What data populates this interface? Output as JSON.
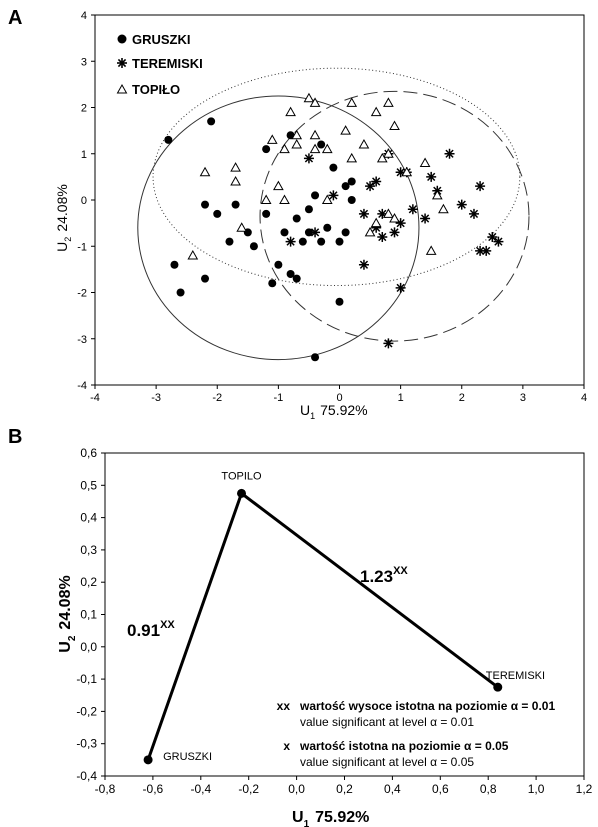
{
  "chart_data": [
    {
      "type": "scatter",
      "panel_label": "A",
      "xlabel_main": "U",
      "xlabel_sub": "1",
      "xlabel_rest": "75.92%",
      "ylabel_main": "U",
      "ylabel_sub": "2",
      "ylabel_rest": "24.08%",
      "xlim": [
        -4,
        4
      ],
      "ylim": [
        -4,
        4
      ],
      "xticks": [
        "-4",
        "-3",
        "-2",
        "-1",
        "0",
        "1",
        "2",
        "3",
        "4"
      ],
      "yticks": [
        "-4",
        "-3",
        "-2",
        "-1",
        "0",
        "1",
        "2",
        "3",
        "4"
      ],
      "legend": [
        {
          "name": "GRUSZKI",
          "marker": "dot"
        },
        {
          "name": "TEREMISKI",
          "marker": "star"
        },
        {
          "name": "TOPIŁO",
          "marker": "triangle"
        }
      ],
      "ellipses": [
        {
          "series": "GRUSZKI",
          "cx": -1.0,
          "cy": -0.6,
          "rx": 2.3,
          "ry": 2.85,
          "style": "solid"
        },
        {
          "series": "TEREMISKI",
          "cx": 0.9,
          "cy": -0.35,
          "rx": 2.2,
          "ry": 2.7,
          "style": "dashed"
        },
        {
          "series": "TOPIŁO",
          "cx": -0.05,
          "cy": 0.5,
          "rx": 3.0,
          "ry": 2.35,
          "style": "dotted"
        }
      ],
      "series": [
        {
          "name": "GRUSZKI",
          "marker": "dot",
          "points": [
            [
              -2.8,
              1.3
            ],
            [
              -2.1,
              1.7
            ],
            [
              -1.2,
              1.1
            ],
            [
              -0.8,
              1.4
            ],
            [
              -0.3,
              1.2
            ],
            [
              -2.2,
              -0.1
            ],
            [
              -2.0,
              -0.3
            ],
            [
              -1.7,
              -0.1
            ],
            [
              -1.8,
              -0.9
            ],
            [
              -1.5,
              -0.7
            ],
            [
              -1.4,
              -1.0
            ],
            [
              -1.0,
              -1.4
            ],
            [
              -0.9,
              -0.7
            ],
            [
              -1.2,
              -0.3
            ],
            [
              -0.7,
              -0.4
            ],
            [
              -0.5,
              -0.2
            ],
            [
              -0.4,
              0.1
            ],
            [
              -0.2,
              -0.6
            ],
            [
              0.0,
              -0.9
            ],
            [
              0.1,
              -0.7
            ],
            [
              0.2,
              0.0
            ],
            [
              0.1,
              0.3
            ],
            [
              -0.1,
              0.7
            ],
            [
              0.2,
              0.4
            ],
            [
              -0.5,
              -0.7
            ],
            [
              -0.3,
              -0.9
            ],
            [
              -0.8,
              -1.6
            ],
            [
              -0.7,
              -1.7
            ],
            [
              -2.7,
              -1.4
            ],
            [
              -2.6,
              -2.0
            ],
            [
              -2.2,
              -1.7
            ],
            [
              0.0,
              -2.2
            ],
            [
              -0.4,
              -3.4
            ],
            [
              -1.1,
              -1.8
            ],
            [
              -0.6,
              -0.9
            ]
          ]
        },
        {
          "name": "TEREMISKI",
          "marker": "star",
          "points": [
            [
              -0.5,
              0.9
            ],
            [
              0.8,
              1.0
            ],
            [
              1.1,
              0.6
            ],
            [
              1.5,
              0.5
            ],
            [
              1.8,
              1.0
            ],
            [
              2.3,
              0.3
            ],
            [
              1.6,
              0.2
            ],
            [
              1.0,
              0.6
            ],
            [
              0.6,
              0.4
            ],
            [
              0.5,
              0.3
            ],
            [
              0.4,
              -0.3
            ],
            [
              0.7,
              -0.3
            ],
            [
              1.0,
              -0.5
            ],
            [
              1.2,
              -0.2
            ],
            [
              0.9,
              -0.7
            ],
            [
              0.6,
              -0.6
            ],
            [
              0.7,
              -0.8
            ],
            [
              1.4,
              -0.4
            ],
            [
              2.0,
              -0.1
            ],
            [
              2.2,
              -0.3
            ],
            [
              2.3,
              -1.1
            ],
            [
              2.5,
              -0.8
            ],
            [
              2.6,
              -0.9
            ],
            [
              2.4,
              -1.1
            ],
            [
              -0.4,
              -0.7
            ],
            [
              -0.1,
              0.1
            ],
            [
              0.4,
              -1.4
            ],
            [
              1.0,
              -1.9
            ],
            [
              0.8,
              -3.1
            ],
            [
              -0.8,
              -0.9
            ]
          ]
        },
        {
          "name": "TOPIŁO",
          "marker": "triangle",
          "points": [
            [
              -0.8,
              1.9
            ],
            [
              -0.5,
              2.2
            ],
            [
              -0.4,
              2.1
            ],
            [
              0.2,
              2.1
            ],
            [
              0.8,
              2.1
            ],
            [
              0.6,
              1.9
            ],
            [
              0.9,
              1.6
            ],
            [
              -0.7,
              1.4
            ],
            [
              -0.4,
              1.4
            ],
            [
              -1.1,
              1.3
            ],
            [
              -0.9,
              1.1
            ],
            [
              0.1,
              1.5
            ],
            [
              -0.7,
              1.2
            ],
            [
              -0.4,
              1.1
            ],
            [
              0.4,
              1.2
            ],
            [
              0.2,
              0.9
            ],
            [
              -0.2,
              1.1
            ],
            [
              0.8,
              1.0
            ],
            [
              0.7,
              0.9
            ],
            [
              1.1,
              0.6
            ],
            [
              1.4,
              0.8
            ],
            [
              1.6,
              0.1
            ],
            [
              1.7,
              -0.2
            ],
            [
              -1.0,
              0.3
            ],
            [
              -1.2,
              0.0
            ],
            [
              -0.9,
              0.0
            ],
            [
              -0.2,
              0.0
            ],
            [
              0.8,
              -0.3
            ],
            [
              0.9,
              -0.4
            ],
            [
              0.6,
              -0.5
            ],
            [
              0.5,
              -0.7
            ],
            [
              1.5,
              -1.1
            ],
            [
              -1.7,
              0.4
            ],
            [
              -1.7,
              0.7
            ],
            [
              -2.2,
              0.6
            ],
            [
              -1.6,
              -0.6
            ],
            [
              -2.4,
              -1.2
            ]
          ]
        }
      ]
    },
    {
      "type": "line",
      "panel_label": "B",
      "xlabel_main": "U",
      "xlabel_sub": "1",
      "xlabel_rest": "75.92%",
      "ylabel_main": "U",
      "ylabel_sub": "2",
      "ylabel_rest": "24.08%",
      "xlim": [
        -0.8,
        1.2
      ],
      "ylim": [
        -0.4,
        0.6
      ],
      "xticks": [
        "-0,8",
        "-0,6",
        "-0,4",
        "-0,2",
        "0,0",
        "0,2",
        "0,4",
        "0,6",
        "0,8",
        "1,0",
        "1,2"
      ],
      "yticks": [
        "-0,4",
        "-0,3",
        "-0,2",
        "-0,1",
        "0,0",
        "0,1",
        "0,2",
        "0,3",
        "0,4",
        "0,5",
        "0,6"
      ],
      "points": [
        {
          "name": "GRUSZKI",
          "x": -0.62,
          "y": -0.35
        },
        {
          "name": "TOPILO",
          "x": -0.23,
          "y": 0.475
        },
        {
          "name": "TEREMISKI",
          "x": 0.84,
          "y": -0.125
        }
      ],
      "edges": [
        {
          "from": "GRUSZKI",
          "to": "TOPILO",
          "label": "0.91",
          "sup": "XX"
        },
        {
          "from": "TOPILO",
          "to": "TEREMISKI",
          "label": "1.23",
          "sup": "XX"
        }
      ],
      "legend_notes": [
        {
          "symbol": "xx",
          "text": "wartość wysoce istotna na poziomie α = 0.01",
          "sub": "value significant at level α = 0.01"
        },
        {
          "symbol": "x",
          "text": "wartość istotna na poziomie α = 0.05",
          "sub": "value significant at level α = 0.05"
        }
      ]
    }
  ]
}
